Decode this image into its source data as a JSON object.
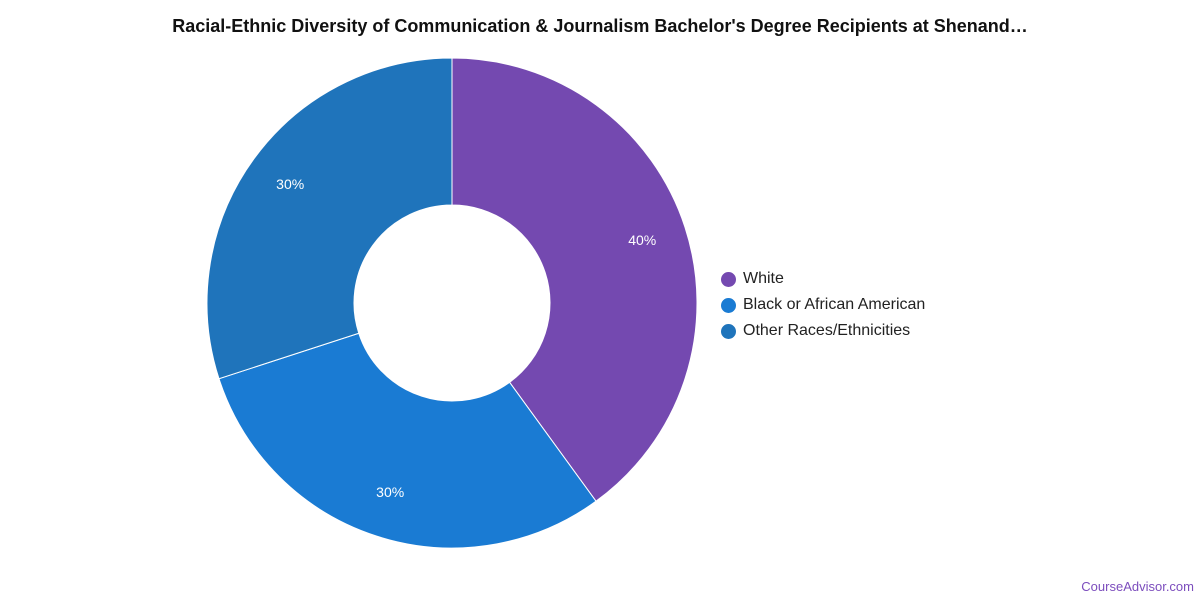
{
  "chart_data": {
    "type": "pie",
    "variant": "donut",
    "title": "Racial-Ethnic Diversity of Communication & Journalism Bachelor's Degree Recipients at Shenand…",
    "series": [
      {
        "name": "White",
        "value": 40,
        "label": "40%",
        "color": "#7449b0"
      },
      {
        "name": "Black or African American",
        "value": 30,
        "label": "30%",
        "color": "#1a7bd3"
      },
      {
        "name": "Other Races/Ethnicities",
        "value": 30,
        "label": "30%",
        "color": "#1f74bb"
      }
    ],
    "legend_position": "right"
  },
  "source": "CourseAdvisor.com"
}
